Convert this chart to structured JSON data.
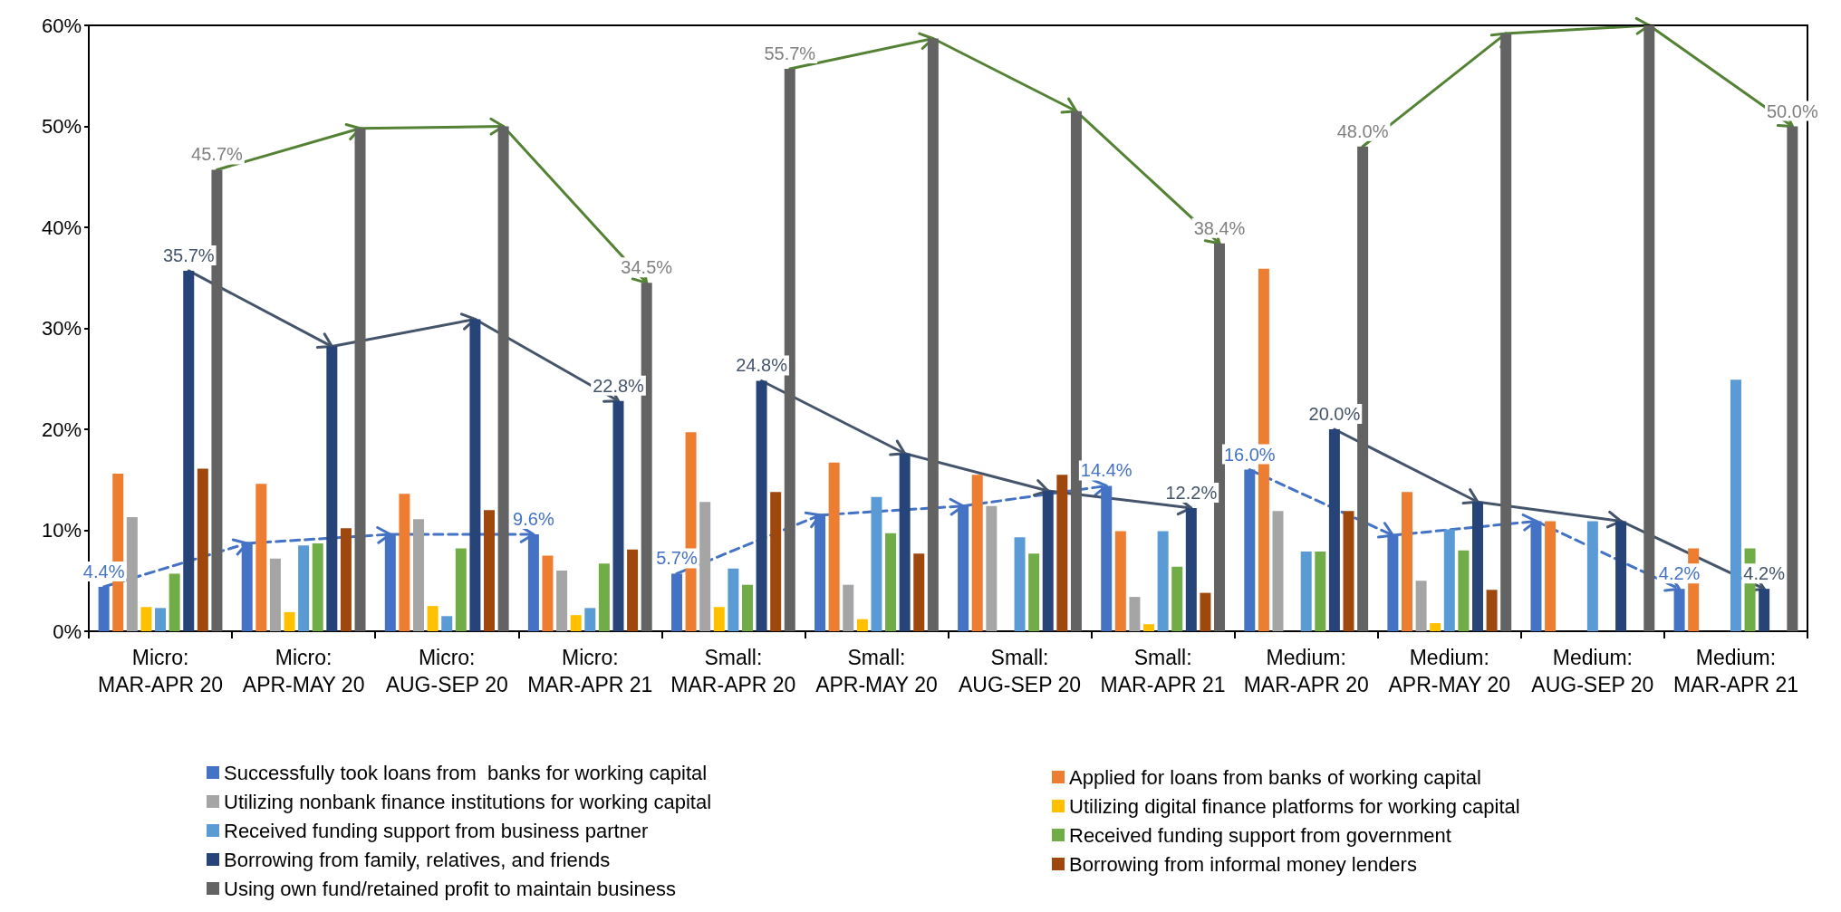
{
  "chart_data": {
    "type": "bar",
    "categories": [
      "Micro:\nMAR-APR 20",
      "Micro:\nAPR-MAY 20",
      "Micro:\nAUG-SEP 20",
      "Micro:\nMAR-APR 21",
      "Small:\nMAR-APR 20",
      "Small:\nAPR-MAY 20",
      "Small:\nAUG-SEP 20",
      "Small:\nMAR-APR 21",
      "Medium:\nMAR-APR 20",
      "Medium:\nAPR-MAY 20",
      "Medium:\nAUG-SEP 20",
      "Medium:\nMAR-APR 21"
    ],
    "series": [
      {
        "name": "Successfully took loans from  banks for working capital",
        "color": "#4472c4",
        "values": [
          4.4,
          8.7,
          9.6,
          9.6,
          5.7,
          11.5,
          12.4,
          14.4,
          16.0,
          9.5,
          10.9,
          4.2
        ],
        "value_labels": [
          "4.4%",
          null,
          null,
          "9.6%",
          "5.7%",
          null,
          null,
          "14.4%",
          "16.0%",
          null,
          null,
          "4.2%"
        ]
      },
      {
        "name": "Applied for loans from banks of working capital",
        "color": "#ed7d31",
        "values": [
          15.6,
          14.6,
          13.6,
          7.5,
          19.7,
          16.7,
          15.5,
          9.9,
          35.9,
          13.8,
          10.9,
          8.2
        ]
      },
      {
        "name": "Utilizing nonbank finance institutions for working capital",
        "color": "#a5a5a5",
        "values": [
          11.3,
          7.2,
          11.1,
          6.0,
          12.8,
          4.6,
          12.4,
          3.4,
          11.9,
          5.0,
          null,
          null
        ]
      },
      {
        "name": "Utilizing digital finance platforms for working capital",
        "color": "#ffc000",
        "values": [
          2.4,
          1.9,
          2.5,
          1.6,
          2.4,
          1.2,
          null,
          0.7,
          null,
          0.8,
          null,
          null
        ]
      },
      {
        "name": "Received funding support from business partner",
        "color": "#5b9bd5",
        "values": [
          2.3,
          8.5,
          1.5,
          2.3,
          6.2,
          13.3,
          9.3,
          9.9,
          7.9,
          10.1,
          10.9,
          24.9
        ]
      },
      {
        "name": "Received funding support from government",
        "color": "#70ad47",
        "values": [
          5.7,
          8.7,
          8.2,
          6.7,
          4.6,
          9.7,
          7.7,
          6.4,
          7.9,
          8.0,
          null,
          8.2
        ]
      },
      {
        "name": "Borrowing from family, relatives, and friends",
        "color": "#264478",
        "values": [
          35.7,
          28.2,
          30.9,
          22.8,
          24.8,
          17.6,
          13.9,
          12.2,
          20.0,
          12.8,
          10.9,
          4.2
        ],
        "value_labels": [
          "35.7%",
          null,
          null,
          "22.8%",
          "24.8%",
          null,
          null,
          "12.2%",
          "20.0%",
          null,
          null,
          "4.2%"
        ]
      },
      {
        "name": "Borrowing from informal money lenders",
        "color": "#9e480e",
        "values": [
          16.1,
          10.2,
          12.0,
          8.1,
          13.8,
          7.7,
          15.5,
          3.8,
          11.9,
          4.1,
          null,
          null
        ]
      },
      {
        "name": "Using own fund/retained profit to maintain business",
        "color": "#636363",
        "values": [
          45.7,
          49.8,
          50.0,
          34.5,
          55.7,
          58.7,
          51.5,
          38.4,
          48.0,
          59.2,
          60.0,
          50.0
        ],
        "value_labels": [
          "45.7%",
          null,
          null,
          "34.5%",
          "55.7%",
          null,
          null,
          "38.4%",
          "48.0%",
          null,
          null,
          "50.0%"
        ]
      }
    ],
    "ylim": [
      0,
      60
    ],
    "yticks": [
      {
        "value": 0,
        "label": "0%"
      },
      {
        "value": 10,
        "label": "10%"
      },
      {
        "value": 20,
        "label": "20%"
      },
      {
        "value": 30,
        "label": "30%"
      },
      {
        "value": 40,
        "label": "40%"
      },
      {
        "value": 50,
        "label": "50%"
      },
      {
        "value": 60,
        "label": "60%"
      }
    ],
    "grid": false,
    "legend": "bottom"
  }
}
